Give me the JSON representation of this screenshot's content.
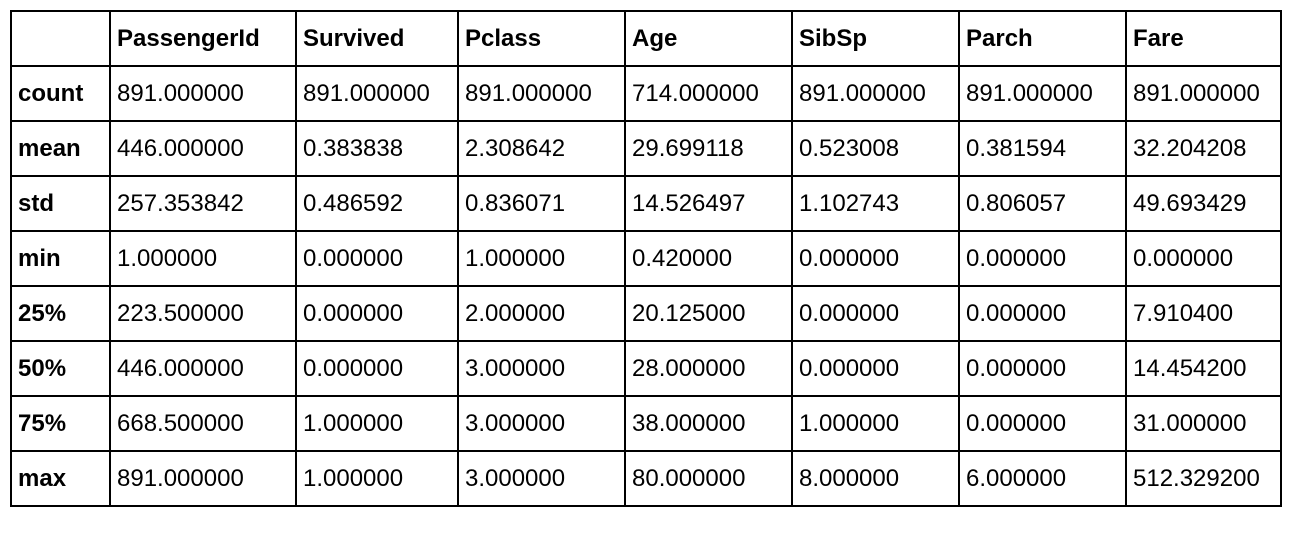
{
  "table": {
    "columns": [
      "",
      "PassengerId",
      "Survived",
      "Pclass",
      "Age",
      "SibSp",
      "Parch",
      "Fare"
    ],
    "rows": [
      {
        "label": "count",
        "cells": [
          "891.000000",
          "891.000000",
          "891.000000",
          "714.000000",
          "891.000000",
          "891.000000",
          "891.000000"
        ]
      },
      {
        "label": "mean",
        "cells": [
          "446.000000",
          "0.383838",
          "2.308642",
          "29.699118",
          "0.523008",
          "0.381594",
          "32.204208"
        ]
      },
      {
        "label": "std",
        "cells": [
          "257.353842",
          "0.486592",
          "0.836071",
          "14.526497",
          "1.102743",
          "0.806057",
          "49.693429"
        ]
      },
      {
        "label": "min",
        "cells": [
          "1.000000",
          "0.000000",
          "1.000000",
          "0.420000",
          "0.000000",
          "0.000000",
          "0.000000"
        ]
      },
      {
        "label": "25%",
        "cells": [
          "223.500000",
          "0.000000",
          "2.000000",
          "20.125000",
          "0.000000",
          "0.000000",
          "7.910400"
        ]
      },
      {
        "label": "50%",
        "cells": [
          "446.000000",
          "0.000000",
          "3.000000",
          "28.000000",
          "0.000000",
          "0.000000",
          "14.454200"
        ]
      },
      {
        "label": "75%",
        "cells": [
          "668.500000",
          "1.000000",
          "3.000000",
          "38.000000",
          "1.000000",
          "0.000000",
          "31.000000"
        ]
      },
      {
        "label": "max",
        "cells": [
          "891.000000",
          "1.000000",
          "3.000000",
          "80.000000",
          "8.000000",
          "6.000000",
          "512.329200"
        ]
      }
    ]
  }
}
